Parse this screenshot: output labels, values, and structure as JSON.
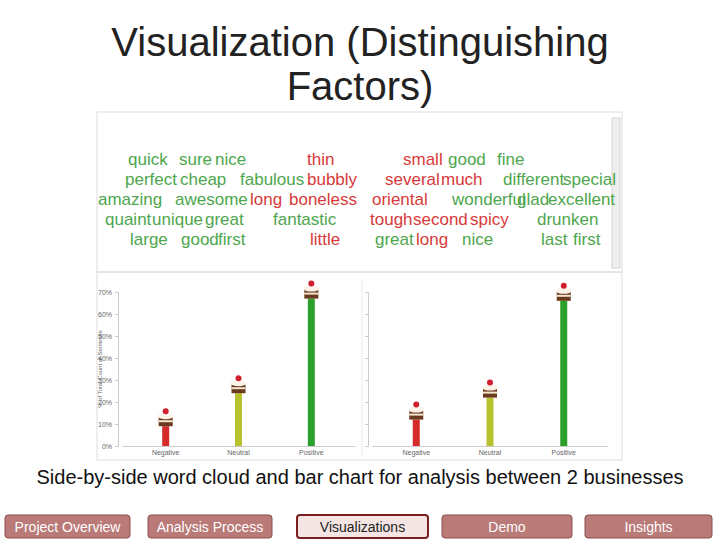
{
  "slide": {
    "title": "Visualization (Distinguishing Factors)",
    "caption": "Side-by-side word cloud and bar chart for analysis between 2 businesses",
    "nav": [
      "Project Overview",
      "Analysis Process",
      "Visualizations",
      "Demo",
      "Insights"
    ],
    "nav_active": "Visualizations"
  },
  "word_clouds": [
    {
      "words": [
        {
          "text": "quick",
          "color": "#4ea64e"
        },
        {
          "text": "sure",
          "color": "#4ea64e"
        },
        {
          "text": "nice",
          "color": "#4ea64e"
        },
        {
          "text": "thin",
          "color": "#d63a3a"
        },
        {
          "text": "perfect",
          "color": "#4ea64e"
        },
        {
          "text": "cheap",
          "color": "#4ea64e"
        },
        {
          "text": "fabulous",
          "color": "#4ea64e"
        },
        {
          "text": "bubbly",
          "color": "#d63a3a"
        },
        {
          "text": "amazing",
          "color": "#4ea64e"
        },
        {
          "text": "awesome",
          "color": "#4ea64e"
        },
        {
          "text": "long",
          "color": "#d63a3a"
        },
        {
          "text": "boneless",
          "color": "#d63a3a"
        },
        {
          "text": "quaint",
          "color": "#4ea64e"
        },
        {
          "text": "unique",
          "color": "#4ea64e"
        },
        {
          "text": "great",
          "color": "#4ea64e"
        },
        {
          "text": "fantastic",
          "color": "#4ea64e"
        },
        {
          "text": "large",
          "color": "#4ea64e"
        },
        {
          "text": "good",
          "color": "#4ea64e"
        },
        {
          "text": "first",
          "color": "#4ea64e"
        },
        {
          "text": "little",
          "color": "#d63a3a"
        }
      ]
    },
    {
      "words": [
        {
          "text": "small",
          "color": "#d63a3a"
        },
        {
          "text": "good",
          "color": "#4ea64e"
        },
        {
          "text": "fine",
          "color": "#4ea64e"
        },
        {
          "text": "several",
          "color": "#d63a3a"
        },
        {
          "text": "much",
          "color": "#d63a3a"
        },
        {
          "text": "different",
          "color": "#4ea64e"
        },
        {
          "text": "special",
          "color": "#4ea64e"
        },
        {
          "text": "oriental",
          "color": "#d63a3a"
        },
        {
          "text": "wonderful",
          "color": "#4ea64e"
        },
        {
          "text": "glad",
          "color": "#4ea64e"
        },
        {
          "text": "excellent",
          "color": "#4ea64e"
        },
        {
          "text": "tough",
          "color": "#d63a3a"
        },
        {
          "text": "second",
          "color": "#d63a3a"
        },
        {
          "text": "spicy",
          "color": "#d63a3a"
        },
        {
          "text": "drunken",
          "color": "#4ea64e"
        },
        {
          "text": "great",
          "color": "#4ea64e"
        },
        {
          "text": "long",
          "color": "#d63a3a"
        },
        {
          "text": "nice",
          "color": "#4ea64e"
        },
        {
          "text": "last",
          "color": "#4ea64e"
        },
        {
          "text": "first",
          "color": "#4ea64e"
        }
      ]
    }
  ],
  "chart_data": [
    {
      "type": "bar",
      "y_label": "% of Total Count of Sentence",
      "categories": [
        "Negative",
        "Neutral",
        "Positive"
      ],
      "values": [
        9,
        24,
        67
      ],
      "colors": [
        "#d62b2b",
        "#b8c22e",
        "#2ca02c"
      ],
      "ylim": [
        0,
        70
      ],
      "yticks": [
        {
          "value": 0,
          "label": "0%"
        },
        {
          "value": 10,
          "label": "10%"
        },
        {
          "value": 20,
          "label": "20%"
        },
        {
          "value": 30,
          "label": "30%"
        },
        {
          "value": 40,
          "label": "40%"
        },
        {
          "value": 50,
          "label": "50%"
        },
        {
          "value": 60,
          "label": "60%"
        },
        {
          "value": 70,
          "label": "70%"
        }
      ],
      "grid": false
    },
    {
      "type": "bar",
      "categories": [
        "Negative",
        "Neutral",
        "Positive"
      ],
      "values": [
        12,
        22,
        66
      ],
      "colors": [
        "#d62b2b",
        "#b8c22e",
        "#2ca02c"
      ],
      "ylim": [
        0,
        70
      ],
      "yticks": [
        0,
        10,
        20,
        30,
        40,
        50,
        60,
        70
      ],
      "grid": false,
      "tick_labels": "x"
    }
  ]
}
